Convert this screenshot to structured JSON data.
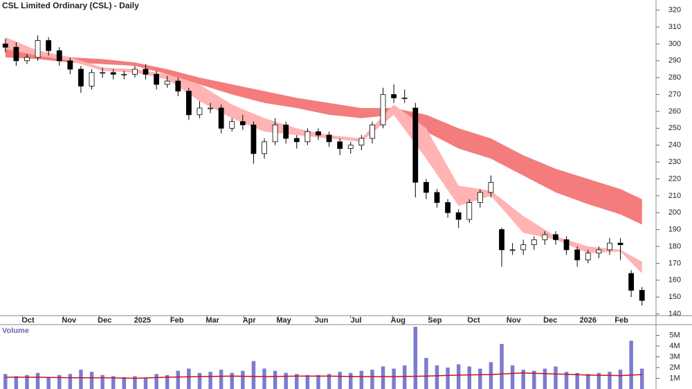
{
  "chart_data": [
    {
      "type": "candlestick",
      "title": "CSL Limited Ordinary (CSL) - Daily",
      "xlim": [
        -0.5,
        60.3
      ],
      "ylim": [
        139,
        326
      ],
      "yticks": [
        140,
        150,
        160,
        170,
        180,
        190,
        200,
        210,
        220,
        230,
        240,
        250,
        260,
        270,
        280,
        290,
        300,
        310,
        320
      ],
      "xticks": [
        {
          "value": 2.1,
          "label": "Oct"
        },
        {
          "value": 5.9,
          "label": "Nov"
        },
        {
          "value": 9.2,
          "label": "Dec"
        },
        {
          "value": 12.7,
          "label": "2025"
        },
        {
          "value": 15.9,
          "label": "Feb"
        },
        {
          "value": 19.2,
          "label": "Mar"
        },
        {
          "value": 22.6,
          "label": "Apr"
        },
        {
          "value": 25.8,
          "label": "May"
        },
        {
          "value": 29.3,
          "label": "Jun"
        },
        {
          "value": 32.5,
          "label": "Jul"
        },
        {
          "value": 36.4,
          "label": "Aug"
        },
        {
          "value": 39.8,
          "label": "Sep"
        },
        {
          "value": 43.4,
          "label": "Oct"
        },
        {
          "value": 47.1,
          "label": "Nov"
        },
        {
          "value": 50.5,
          "label": "Dec"
        },
        {
          "value": 54,
          "label": "2026"
        },
        {
          "value": 57.1,
          "label": "Feb"
        }
      ],
      "grid": false,
      "up_color": "#ffffff",
      "down_color": "#000000",
      "open": [
        300,
        298,
        290,
        292,
        302,
        296,
        290,
        285,
        275,
        283,
        283,
        282,
        282,
        285,
        282,
        276,
        278,
        272,
        258,
        262,
        262,
        250,
        254,
        252,
        235,
        242,
        252,
        244,
        242,
        248,
        246,
        242,
        238,
        240,
        244,
        252,
        270,
        268,
        262,
        218,
        212,
        206,
        200,
        196,
        206,
        212,
        190,
        178,
        178,
        181,
        184,
        187,
        184,
        178,
        172,
        176,
        178,
        182,
        164,
        154
      ],
      "high": [
        303,
        301,
        294,
        305,
        304,
        298,
        292,
        287,
        285,
        286,
        285,
        284,
        287,
        288,
        284,
        281,
        280,
        274,
        266,
        265,
        264,
        256,
        258,
        254,
        244,
        256,
        254,
        246,
        250,
        250,
        248,
        244,
        242,
        246,
        254,
        274,
        276,
        273,
        265,
        220,
        214,
        208,
        202,
        208,
        214,
        222,
        191,
        182,
        184,
        186,
        189,
        189,
        186,
        180,
        178,
        180,
        185,
        185,
        166,
        156
      ],
      "low": [
        295,
        287,
        288,
        290,
        293,
        287,
        282,
        271,
        273,
        280,
        279,
        279,
        280,
        279,
        273,
        274,
        269,
        255,
        256,
        259,
        247,
        248,
        249,
        229,
        232,
        240,
        241,
        238,
        240,
        243,
        239,
        234,
        235,
        237,
        241,
        250,
        265,
        265,
        209,
        208,
        203,
        197,
        191,
        194,
        203,
        209,
        168,
        175,
        175,
        178,
        181,
        181,
        175,
        168,
        170,
        173,
        175,
        172,
        150,
        145
      ],
      "close": [
        298,
        290,
        292,
        302,
        296,
        290,
        285,
        275,
        283,
        283,
        282,
        282,
        285,
        282,
        276,
        278,
        272,
        258,
        262,
        262,
        250,
        254,
        252,
        235,
        242,
        252,
        244,
        242,
        248,
        246,
        242,
        238,
        240,
        244,
        252,
        270,
        268,
        268,
        218,
        212,
        206,
        200,
        196,
        206,
        212,
        218,
        178,
        178,
        181,
        184,
        187,
        184,
        178,
        172,
        176,
        178,
        182,
        181,
        154,
        148
      ],
      "bands": [
        {
          "color": "#f47c7c",
          "x": [
            0,
            3,
            6,
            9,
            12,
            15,
            18,
            21,
            24,
            27,
            30,
            33,
            36,
            39,
            42,
            45,
            48,
            51,
            54,
            57,
            59
          ],
          "upper": [
            297,
            296,
            292,
            291,
            289,
            285,
            280,
            276,
            272,
            268,
            265,
            262,
            262,
            258,
            250,
            244,
            234,
            226,
            220,
            214,
            208
          ],
          "lower": [
            292,
            291,
            289,
            288,
            287,
            282,
            276,
            270,
            265,
            262,
            258,
            256,
            258,
            248,
            238,
            232,
            222,
            212,
            205,
            199,
            193
          ]
        },
        {
          "color": "#ffb3b3",
          "x": [
            0,
            3,
            6,
            9,
            12,
            15,
            18,
            21,
            24,
            27,
            30,
            33,
            36,
            39,
            42,
            45,
            48,
            51,
            54,
            57,
            59
          ],
          "upper": [
            304,
            296,
            292,
            286,
            285,
            282,
            276,
            264,
            256,
            250,
            246,
            244,
            264,
            250,
            216,
            213,
            198,
            186,
            180,
            178,
            171
          ],
          "lower": [
            297,
            293,
            290,
            284,
            283,
            279,
            266,
            256,
            248,
            246,
            244,
            242,
            258,
            232,
            204,
            210,
            188,
            184,
            176,
            177,
            164
          ]
        }
      ]
    },
    {
      "type": "bar",
      "title": "Volume",
      "color": "#7b7bd0",
      "xlim": [
        -0.5,
        60.3
      ],
      "ylim": [
        0,
        6000000
      ],
      "yticks": [
        {
          "value": 1000000,
          "label": "1M"
        },
        {
          "value": 2000000,
          "label": "2M"
        },
        {
          "value": 3000000,
          "label": "3M"
        },
        {
          "value": 4000000,
          "label": "4M"
        },
        {
          "value": 5000000,
          "label": "5M"
        }
      ],
      "values": [
        1400000,
        1200000,
        1300000,
        1500000,
        1100000,
        1300000,
        1400000,
        1800000,
        1600000,
        1300000,
        1200000,
        1100000,
        1200000,
        1000000,
        1400000,
        1300000,
        1700000,
        1900000,
        1500000,
        1600000,
        1800000,
        1500000,
        1700000,
        2600000,
        1900000,
        1700000,
        1500000,
        1400000,
        1300000,
        1300000,
        1400000,
        1600000,
        1500000,
        1700000,
        1800000,
        2100000,
        1900000,
        2200000,
        5800000,
        2900000,
        2200000,
        2000000,
        2300000,
        2100000,
        1900000,
        2500000,
        4200000,
        2200000,
        1800000,
        1700000,
        1900000,
        2100000,
        1600000,
        1500000,
        1400000,
        1500000,
        1600000,
        1800000,
        4500000,
        1900000
      ],
      "average": {
        "color": "#cc1111",
        "x": [
          0,
          3,
          6,
          9,
          12,
          15,
          18,
          21,
          24,
          27,
          30,
          33,
          36,
          39,
          42,
          45,
          48,
          51,
          54,
          57,
          59
        ],
        "values": [
          1100000,
          1100000,
          1050000,
          1050000,
          1000000,
          1100000,
          1150000,
          1200000,
          1150000,
          1200000,
          1200000,
          1150000,
          1150000,
          1200000,
          1300000,
          1350000,
          1500000,
          1400000,
          1300000,
          1250000,
          1350000
        ]
      }
    }
  ]
}
